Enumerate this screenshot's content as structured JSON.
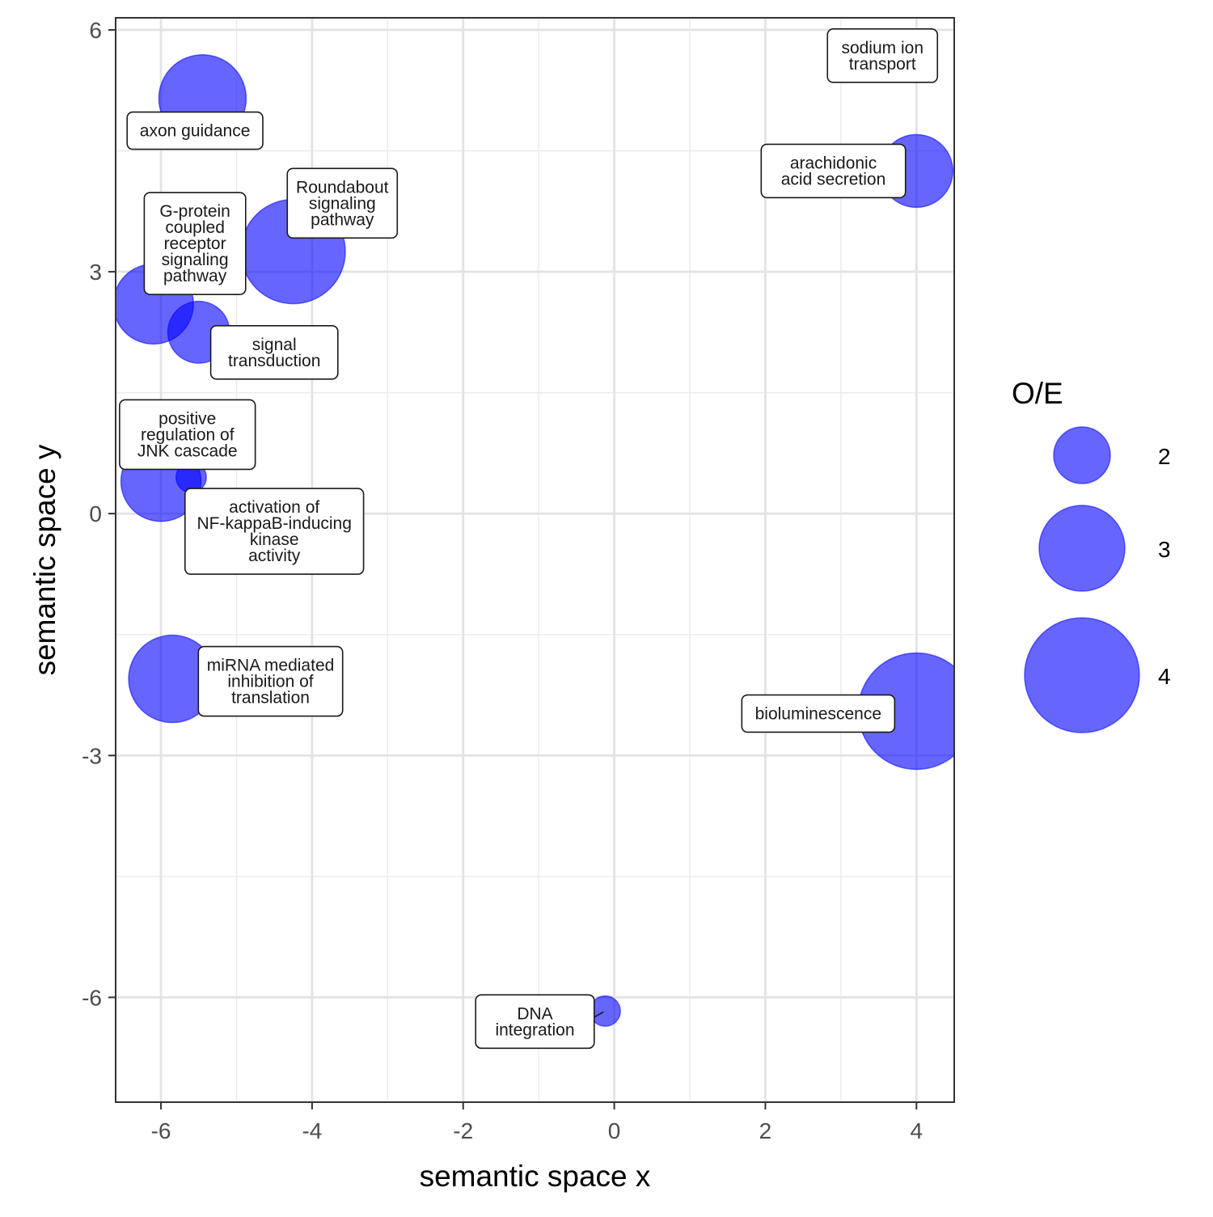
{
  "chart_data": {
    "type": "scatter",
    "xlabel": "semantic space x",
    "ylabel": "semantic space y",
    "xlim": [
      -6.6,
      4.5
    ],
    "ylim": [
      -7.3,
      6.15
    ],
    "x_ticks": [
      -6,
      -4,
      -2,
      0,
      2,
      4
    ],
    "y_ticks": [
      -6,
      -3,
      0,
      3,
      6
    ],
    "x_tick_labels": [
      "-6",
      "-4",
      "-2",
      "0",
      "2",
      "4"
    ],
    "y_tick_labels": [
      "-6",
      "-3",
      "0",
      "3",
      "6"
    ],
    "grid": true,
    "point_color": "#0000ff",
    "point_opacity": 0.6,
    "size_legend": {
      "title": "O/E",
      "position": "right",
      "values": [
        2,
        3,
        4
      ],
      "labels": [
        "2",
        "3",
        "4"
      ]
    },
    "points": [
      {
        "label": "axon guidance",
        "x": -5.45,
        "y": 5.15,
        "size": 3.6,
        "label_x": -5.55,
        "label_y": 4.75
      },
      {
        "label": "Roundabout signaling pathway",
        "x": -4.25,
        "y": 3.25,
        "size": 4.3,
        "label_x": -3.6,
        "label_y": 3.85
      },
      {
        "label": "G-protein coupled receptor signaling pathway",
        "x": -6.1,
        "y": 2.6,
        "size": 3.3,
        "label_x": -5.55,
        "label_y": 3.35
      },
      {
        "label": "signal transduction",
        "x": -5.5,
        "y": 2.25,
        "size": 2.55,
        "label_x": -4.5,
        "label_y": 2.0
      },
      {
        "label": "positive regulation of JNK cascade",
        "x": -6.0,
        "y": 0.4,
        "size": 3.3,
        "label_x": -5.65,
        "label_y": 0.98
      },
      {
        "label": "activation of NF-kappaB-inducing kinase activity",
        "x": -5.6,
        "y": 0.45,
        "size": 1.25,
        "label_x": -4.5,
        "label_y": -0.22
      },
      {
        "label": "miRNA mediated inhibition of translation",
        "x": -5.85,
        "y": -2.05,
        "size": 3.6,
        "label_x": -4.55,
        "label_y": -2.08
      },
      {
        "label": "sodium ion transport",
        "x": 3.4,
        "y": 5.5,
        "size": 0.85,
        "label_x": 3.55,
        "label_y": 5.68
      },
      {
        "label": "arachidonic acid secretion",
        "x": 4.0,
        "y": 4.25,
        "size": 3.0,
        "label_x": 2.9,
        "label_y": 4.25
      },
      {
        "label": "bioluminescence",
        "x": 4.0,
        "y": -2.45,
        "size": 4.8,
        "label_x": 2.7,
        "label_y": -2.48
      },
      {
        "label": "DNA integration",
        "x": -0.12,
        "y": -6.17,
        "size": 1.25,
        "label_x": -1.05,
        "label_y": -6.3
      }
    ]
  }
}
